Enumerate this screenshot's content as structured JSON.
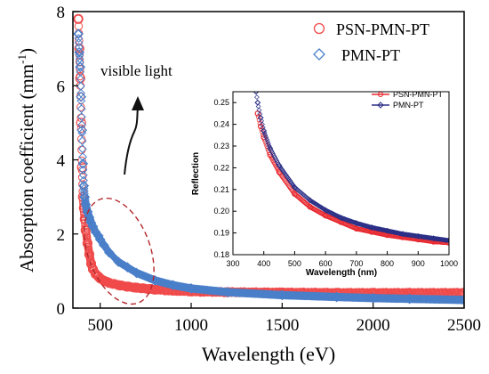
{
  "chart_data": [
    {
      "type": "scatter",
      "xlabel": "Wavelength (eV)",
      "ylabel": "Absorption coefficient (mm",
      "ylabel_sup": "-1",
      "ylabel_close": ")",
      "xlim": [
        350,
        2500
      ],
      "ylim": [
        0,
        8
      ],
      "xticks": [
        500,
        1000,
        1500,
        2000,
        2500
      ],
      "yticks": [
        0,
        2,
        4,
        6,
        8
      ],
      "legend_position": "top-right",
      "series": [
        {
          "name": "PSN-PMN-PT",
          "marker": "circle",
          "color": "#f04a4a",
          "x": [
            380,
            385,
            390,
            395,
            400,
            405,
            410,
            415,
            420,
            430,
            440,
            450,
            460,
            475,
            490,
            500,
            520,
            550,
            600,
            650,
            700,
            800,
            900,
            1000,
            1200,
            1500,
            1800,
            2000,
            2200,
            2500
          ],
          "y": [
            7.8,
            7.0,
            6.2,
            5.0,
            3.8,
            3.0,
            2.7,
            2.4,
            2.1,
            1.75,
            1.45,
            1.2,
            1.05,
            0.92,
            0.85,
            0.8,
            0.74,
            0.68,
            0.62,
            0.58,
            0.55,
            0.5,
            0.47,
            0.45,
            0.43,
            0.42,
            0.41,
            0.41,
            0.41,
            0.41
          ]
        },
        {
          "name": "PMN-PT",
          "marker": "diamond",
          "color": "#4a7fc9",
          "x": [
            380,
            385,
            390,
            395,
            400,
            405,
            410,
            415,
            420,
            430,
            440,
            450,
            460,
            475,
            490,
            500,
            520,
            550,
            600,
            650,
            700,
            800,
            900,
            1000,
            1200,
            1500,
            1800,
            2000,
            2200,
            2500
          ],
          "y": [
            7.4,
            6.9,
            6.5,
            5.7,
            4.8,
            3.9,
            3.3,
            3.0,
            2.8,
            2.6,
            2.45,
            2.3,
            2.2,
            2.05,
            1.95,
            1.85,
            1.7,
            1.5,
            1.25,
            1.1,
            0.95,
            0.75,
            0.62,
            0.53,
            0.43,
            0.35,
            0.3,
            0.27,
            0.25,
            0.22
          ]
        }
      ],
      "annotations": [
        "visible light"
      ]
    },
    {
      "type": "scatter",
      "xlabel": "Wavelength (nm)",
      "ylabel": "Reflection",
      "xlim": [
        300,
        1000
      ],
      "ylim": [
        0.18,
        0.255
      ],
      "xticks": [
        300,
        400,
        500,
        600,
        700,
        800,
        900,
        1000
      ],
      "yticks": [
        0.18,
        0.19,
        0.2,
        0.21,
        0.22,
        0.23,
        0.24,
        0.25
      ],
      "legend_position": "top-right",
      "series": [
        {
          "name": "PSN-PMN-PT",
          "marker": "circle",
          "color": "#e8282f",
          "x": [
            380,
            390,
            400,
            420,
            450,
            500,
            550,
            600,
            650,
            700,
            750,
            800,
            850,
            900,
            950,
            1000
          ],
          "y": [
            0.245,
            0.239,
            0.234,
            0.226,
            0.218,
            0.208,
            0.202,
            0.198,
            0.195,
            0.192,
            0.1905,
            0.189,
            0.188,
            0.187,
            0.186,
            0.1855
          ]
        },
        {
          "name": "PMN-PT",
          "marker": "diamond",
          "color": "#2b2f86",
          "x": [
            375,
            380,
            390,
            400,
            420,
            450,
            500,
            550,
            600,
            650,
            700,
            750,
            800,
            850,
            900,
            950,
            1000
          ],
          "y": [
            0.255,
            0.25,
            0.243,
            0.237,
            0.229,
            0.221,
            0.211,
            0.205,
            0.2005,
            0.197,
            0.1945,
            0.1925,
            0.191,
            0.1895,
            0.1885,
            0.1875,
            0.1865
          ]
        }
      ]
    }
  ]
}
